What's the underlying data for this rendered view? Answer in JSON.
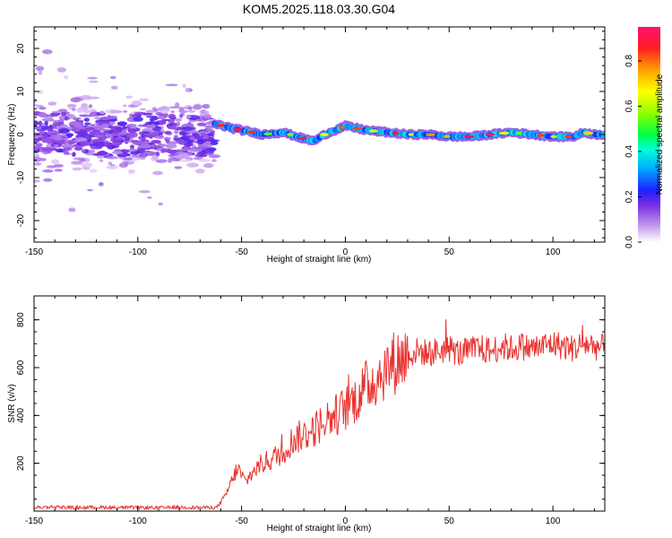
{
  "title": "KOM5.2025.118.03.30.G04",
  "colors": {
    "snr_line": "#e8312e",
    "frame": "#000000"
  },
  "chart_data": [
    {
      "type": "heatmap",
      "xlabel": "Height of straight line (km)",
      "ylabel": "Frequency (Hz)",
      "xlim": [
        -150,
        125
      ],
      "ylim": [
        -25,
        25
      ],
      "xticks": [
        "-150",
        "-100",
        "-50",
        "0",
        "50",
        "100"
      ],
      "yticks": [
        "-20",
        "-10",
        "0",
        "10",
        "20"
      ],
      "colorbar": {
        "label": "Normalized spectral amplitude",
        "range": [
          0,
          0.95
        ],
        "ticks": [
          "0.0",
          "0.2",
          "0.4",
          "0.6",
          "0.8"
        ]
      },
      "description_of_trend": "Scattered low-amplitude points from -150 to -63 km within roughly -20 to 20 Hz; a continuous high-amplitude band near 0 to 2 Hz from -63 km to 125 km",
      "ridge": {
        "x": [
          -63,
          -55,
          -45,
          -40,
          -30,
          -20,
          -15,
          -10,
          -5,
          0,
          5,
          10,
          20,
          30,
          40,
          50,
          60,
          70,
          80,
          90,
          100,
          110,
          115,
          120,
          125
        ],
        "y": [
          2.5,
          1.5,
          0.5,
          0,
          0.5,
          -1,
          -1.5,
          0,
          1,
          2,
          1.5,
          1,
          0.5,
          0,
          0,
          -0.5,
          -0.5,
          0,
          0.5,
          0,
          -0.5,
          -0.5,
          0.5,
          0,
          0
        ]
      },
      "scatter_region": {
        "x": [
          -150,
          -63
        ],
        "y": [
          -20,
          20
        ]
      }
    },
    {
      "type": "line",
      "xlabel": "Height of straight line (km)",
      "ylabel": "SNR (v/v)",
      "xlim": [
        -150,
        125
      ],
      "ylim": [
        0,
        900
      ],
      "xticks": [
        "-150",
        "-100",
        "-50",
        "0",
        "50",
        "100"
      ],
      "yticks": [
        "200",
        "400",
        "600",
        "800"
      ],
      "series": [
        {
          "x": [
            -150,
            -140,
            -130,
            -120,
            -110,
            -100,
            -90,
            -80,
            -70,
            -62,
            -58,
            -55,
            -52,
            -48,
            -45,
            -40,
            -35,
            -30,
            -25,
            -20,
            -15,
            -10,
            -5,
            0,
            5,
            10,
            15,
            20,
            25,
            30,
            35,
            40,
            45,
            50,
            55,
            60,
            65,
            70,
            75,
            80,
            85,
            90,
            95,
            100,
            105,
            110,
            115,
            120,
            125
          ],
          "y": [
            15,
            18,
            14,
            16,
            15,
            15,
            14,
            16,
            15,
            15,
            60,
            120,
            180,
            120,
            160,
            200,
            220,
            250,
            300,
            320,
            340,
            380,
            400,
            430,
            470,
            520,
            560,
            600,
            630,
            650,
            670,
            660,
            670,
            680,
            660,
            670,
            680,
            670,
            690,
            680,
            690,
            680,
            690,
            700,
            690,
            680,
            700,
            690,
            680
          ]
        }
      ]
    }
  ]
}
